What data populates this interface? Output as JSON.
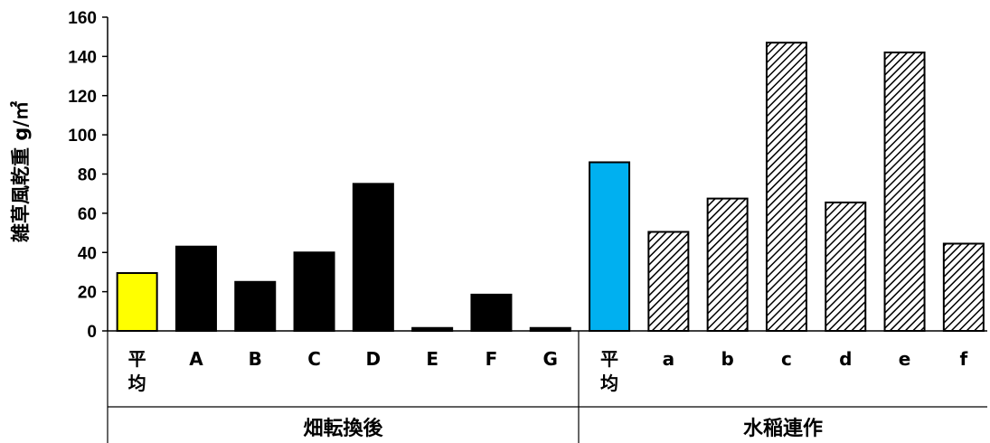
{
  "chart_data": {
    "type": "bar",
    "ylabel": "雑草風乾重 g/㎡",
    "ylim": [
      0,
      160
    ],
    "yticks": [
      "0",
      "20",
      "40",
      "60",
      "80",
      "100",
      "120",
      "140",
      "160"
    ],
    "grid": false,
    "groups": [
      {
        "label": "畑転換後",
        "categories": [
          "平均",
          "A",
          "B",
          "C",
          "D",
          "E",
          "F",
          "G"
        ],
        "values": [
          29.5,
          43,
          25,
          40,
          75,
          1.5,
          18.5,
          1.5
        ],
        "styles": [
          "yellow",
          "black",
          "black",
          "black",
          "black",
          "black",
          "black",
          "black"
        ]
      },
      {
        "label": "水稲連作",
        "categories": [
          "平均",
          "a",
          "b",
          "c",
          "d",
          "e",
          "f"
        ],
        "values": [
          86,
          50.5,
          67.5,
          147,
          65.5,
          142,
          44.5
        ],
        "styles": [
          "blue",
          "hatch",
          "hatch",
          "hatch",
          "hatch",
          "hatch",
          "hatch"
        ]
      }
    ],
    "colors": {
      "yellow": "#ffff00",
      "black": "#000000",
      "blue": "#00b0f0",
      "hatch_line": "#000000",
      "hatch_bg": "#ffffff"
    }
  }
}
